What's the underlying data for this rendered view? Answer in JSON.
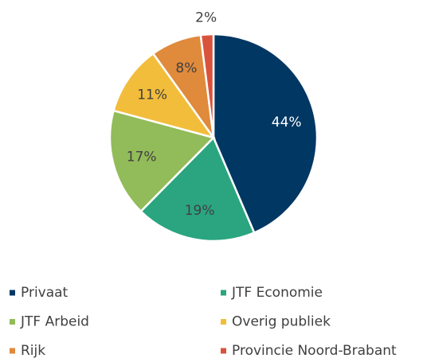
{
  "chart_data": {
    "type": "pie",
    "categories": [
      "Privaat",
      "JTF Economie",
      "JTF Arbeid",
      "Overig publiek",
      "Rijk",
      "Provincie Noord-Brabant"
    ],
    "values": [
      44,
      19,
      17,
      11,
      8,
      2
    ],
    "value_labels": [
      "44%",
      "19%",
      "17%",
      "11%",
      "8%",
      "2%"
    ],
    "colors": [
      "#003763",
      "#2aa57f",
      "#92bb5a",
      "#f2bd3b",
      "#e08a3c",
      "#d9533c"
    ],
    "legend": "bottom"
  }
}
